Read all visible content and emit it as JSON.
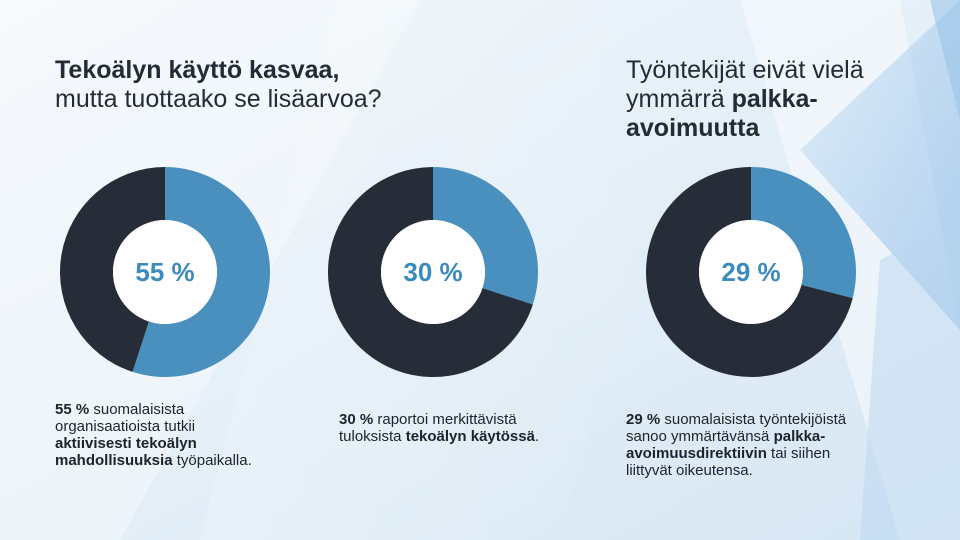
{
  "colors": {
    "dark": "#262d38",
    "accent": "#4a90bf",
    "center": "#ffffff",
    "percent_text": "#3d8bbd"
  },
  "titles": {
    "left_bold": "Tekoälyn käyttö kasvaa,",
    "left_normal": "mutta tuottaako se lisäarvoa?",
    "right_normal_1": "Työntekijät eivät vielä",
    "right_normal_2": "ymmärrä ",
    "right_bold_1": "palkka-",
    "right_bold_2": "avoimuutta"
  },
  "chart_data": [
    {
      "type": "pie",
      "variant": "donut",
      "center_label": "55 %",
      "slices": [
        {
          "value": 55,
          "color": "#4a90bf"
        },
        {
          "value": 45,
          "color": "#262d38"
        }
      ]
    },
    {
      "type": "pie",
      "variant": "donut",
      "center_label": "30 %",
      "slices": [
        {
          "value": 30,
          "color": "#4a90bf"
        },
        {
          "value": 70,
          "color": "#262d38"
        }
      ]
    },
    {
      "type": "pie",
      "variant": "donut",
      "center_label": "29 %",
      "slices": [
        {
          "value": 29,
          "color": "#4a90bf"
        },
        {
          "value": 71,
          "color": "#262d38"
        }
      ]
    }
  ],
  "descriptions": {
    "d1": {
      "bold1": "55 %",
      "text1": " suomalaisista organisaatioista tutkii ",
      "bold2": "aktiivisesti tekoälyn mahdollisuuksia",
      "text2": " työpaikalla."
    },
    "d2": {
      "bold1": "30 %",
      "text1": " raportoi merkittävistä tuloksista ",
      "bold2": "tekoälyn käytössä",
      "text2": "."
    },
    "d3": {
      "bold1": "29 %",
      "text1": " suomalaisista työntekijöistä sanoo ymmärtävänsä ",
      "bold2": "palkka-avoimuusdirektiivin",
      "text2": " tai siihen liittyvät oikeutensa."
    }
  }
}
